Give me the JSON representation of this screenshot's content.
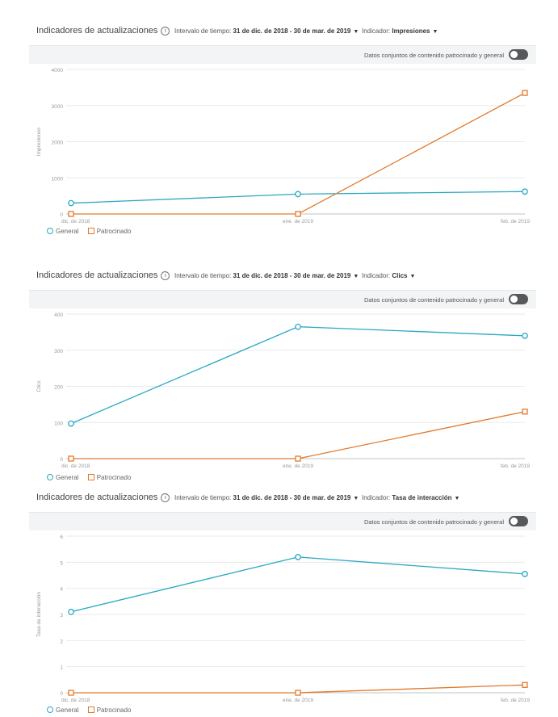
{
  "colors": {
    "general": "#2aa7c3",
    "patrocinado": "#e07a2d",
    "grid": "#e8eaec",
    "axis": "#bfc3c6"
  },
  "panels": [
    {
      "title": "Indicadores de actualizaciones",
      "info_icon": "ⓘ",
      "range_label": "Intervalo de tiempo:",
      "range_value": "31 de dic. de 2018 - 30 de mar. de 2019",
      "indicator_label": "Indicador:",
      "indicator_value": "Impresiones",
      "toggle_label": "Datos conjuntos de contenido patrocinado y general",
      "legend": {
        "general": "General",
        "patrocinado": "Patrocinado"
      }
    },
    {
      "title": "Indicadores de actualizaciones",
      "info_icon": "ⓘ",
      "range_label": "Intervalo de tiempo:",
      "range_value": "31 de dic. de 2018 - 30 de mar. de 2019",
      "indicator_label": "Indicador:",
      "indicator_value": "Clics",
      "toggle_label": "Datos conjuntos de contenido patrocinado y general",
      "legend": {
        "general": "General",
        "patrocinado": "Patrocinado"
      }
    },
    {
      "title": "Indicadores de actualizaciones",
      "info_icon": "ⓘ",
      "range_label": "Intervalo de tiempo:",
      "range_value": "31 de dic. de 2018 - 30 de mar. de 2019",
      "indicator_label": "Indicador:",
      "indicator_value": "Tasa de interacción",
      "toggle_label": "Datos conjuntos de contenido patrocinado y general",
      "legend": {
        "general": "General",
        "patrocinado": "Patrocinado"
      }
    }
  ],
  "chart_data": [
    {
      "type": "line",
      "categories": [
        "dic. de 2018",
        "ene. de 2019",
        "feb. de 2019"
      ],
      "series": [
        {
          "name": "General",
          "values": [
            300,
            550,
            620
          ]
        },
        {
          "name": "Patrocinado",
          "values": [
            0,
            0,
            3350
          ]
        }
      ],
      "ylabel": "Impresiones",
      "yticks": [
        0,
        1000,
        2000,
        3000,
        4000
      ],
      "ytick_labels": [
        "0",
        "1000",
        "2000",
        "3000",
        "4000"
      ],
      "ylim": [
        0,
        4000
      ],
      "grid": true,
      "legend": "bottom-left"
    },
    {
      "type": "line",
      "categories": [
        "dic. de 2018",
        "ene. de 2019",
        "feb. de 2019"
      ],
      "series": [
        {
          "name": "General",
          "values": [
            97,
            365,
            340
          ]
        },
        {
          "name": "Patrocinado",
          "values": [
            0,
            0,
            130
          ]
        }
      ],
      "ylabel": "Clics",
      "yticks": [
        0,
        100,
        200,
        300,
        400
      ],
      "ytick_labels": [
        "0",
        "100",
        "200",
        "300",
        "400"
      ],
      "ylim": [
        0,
        400
      ],
      "grid": true,
      "legend": "bottom-left"
    },
    {
      "type": "line",
      "categories": [
        "dic. de 2018",
        "ene. de 2019",
        "feb. de 2019"
      ],
      "series": [
        {
          "name": "General",
          "values": [
            3.1,
            5.2,
            4.55
          ]
        },
        {
          "name": "Patrocinado",
          "values": [
            0,
            0,
            0.3
          ]
        }
      ],
      "ylabel": "Tasa de interacción",
      "yticks": [
        0,
        1,
        2,
        3,
        4,
        5,
        6
      ],
      "ytick_labels": [
        "0",
        "1",
        "2",
        "3",
        "4",
        "5",
        "6"
      ],
      "ylim": [
        0,
        6
      ],
      "grid": true,
      "legend": "bottom-left"
    }
  ]
}
